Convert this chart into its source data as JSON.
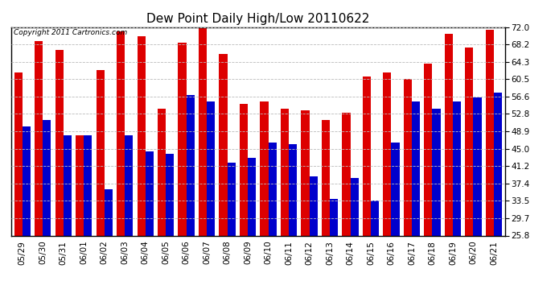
{
  "title": "Dew Point Daily High/Low 20110622",
  "copyright": "Copyright 2011 Cartronics.com",
  "categories": [
    "05/29",
    "05/30",
    "05/31",
    "06/01",
    "06/02",
    "06/03",
    "06/04",
    "06/05",
    "06/06",
    "06/07",
    "06/08",
    "06/09",
    "06/10",
    "06/11",
    "06/12",
    "06/13",
    "06/14",
    "06/15",
    "06/16",
    "06/17",
    "06/18",
    "06/19",
    "06/20",
    "06/21"
  ],
  "high_values": [
    62.0,
    69.0,
    67.0,
    48.0,
    62.5,
    71.0,
    70.0,
    54.0,
    68.5,
    72.0,
    66.0,
    55.0,
    55.5,
    54.0,
    53.5,
    51.5,
    53.0,
    61.0,
    62.0,
    60.5,
    64.0,
    70.5,
    67.5,
    71.5
  ],
  "low_values": [
    50.0,
    51.5,
    48.0,
    48.0,
    36.0,
    48.0,
    44.5,
    44.0,
    57.0,
    55.5,
    42.0,
    43.0,
    46.5,
    46.0,
    39.0,
    34.0,
    38.5,
    33.5,
    46.5,
    55.5,
    54.0,
    55.5,
    56.5,
    57.5
  ],
  "bar_color_high": "#dd0000",
  "bar_color_low": "#0000cc",
  "bg_color": "#ffffff",
  "grid_color": "#bbbbbb",
  "ylim_min": 25.8,
  "ylim_max": 72.0,
  "yticks": [
    25.8,
    29.7,
    33.5,
    37.4,
    41.2,
    45.0,
    48.9,
    52.8,
    56.6,
    60.5,
    64.3,
    68.2,
    72.0
  ],
  "title_fontsize": 11,
  "tick_fontsize": 7.5,
  "copyright_fontsize": 6.5
}
